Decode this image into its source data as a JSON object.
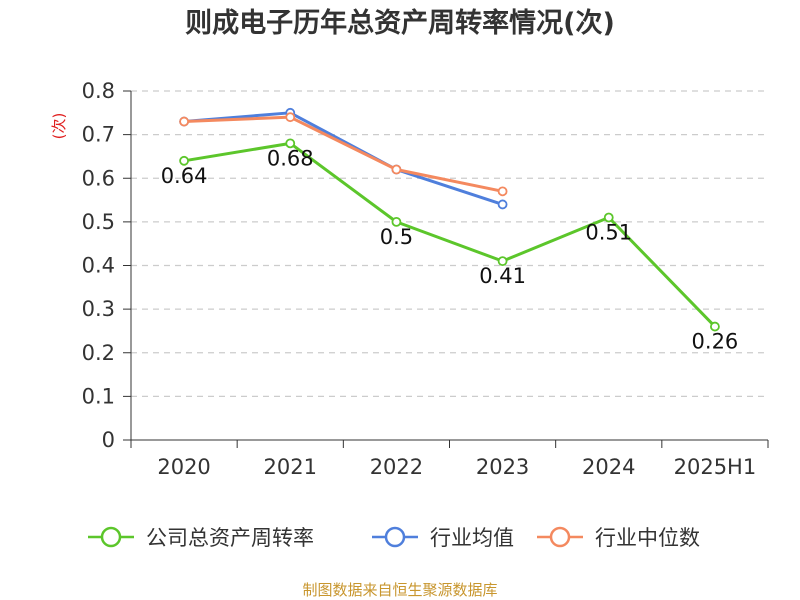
{
  "chart_data": {
    "type": "line",
    "title": "则成电子历年总资产周转率情况(次)",
    "ylabel": "(次)",
    "xlabel": "",
    "categories": [
      "2020",
      "2021",
      "2022",
      "2023",
      "2024",
      "2025H1"
    ],
    "ylim": [
      0,
      0.8
    ],
    "yticks": [
      "0",
      "0.1",
      "0.2",
      "0.3",
      "0.4",
      "0.5",
      "0.6",
      "0.7",
      "0.8"
    ],
    "grid": true,
    "legend_position": "bottom",
    "series": [
      {
        "name": "公司总资产周转率",
        "color": "#5cc62b",
        "values": [
          0.64,
          0.68,
          0.5,
          0.41,
          0.51,
          0.26
        ],
        "labels": [
          "0.64",
          "0.68",
          "0.5",
          "0.41",
          "0.51",
          "0.26"
        ]
      },
      {
        "name": "行业均值",
        "color": "#4f7fdc",
        "values": [
          0.73,
          0.75,
          0.62,
          0.54,
          null,
          null
        ]
      },
      {
        "name": "行业中位数",
        "color": "#f4895f",
        "values": [
          0.73,
          0.74,
          0.62,
          0.57,
          null,
          null
        ]
      }
    ]
  },
  "source_text": "制图数据来自恒生聚源数据库"
}
